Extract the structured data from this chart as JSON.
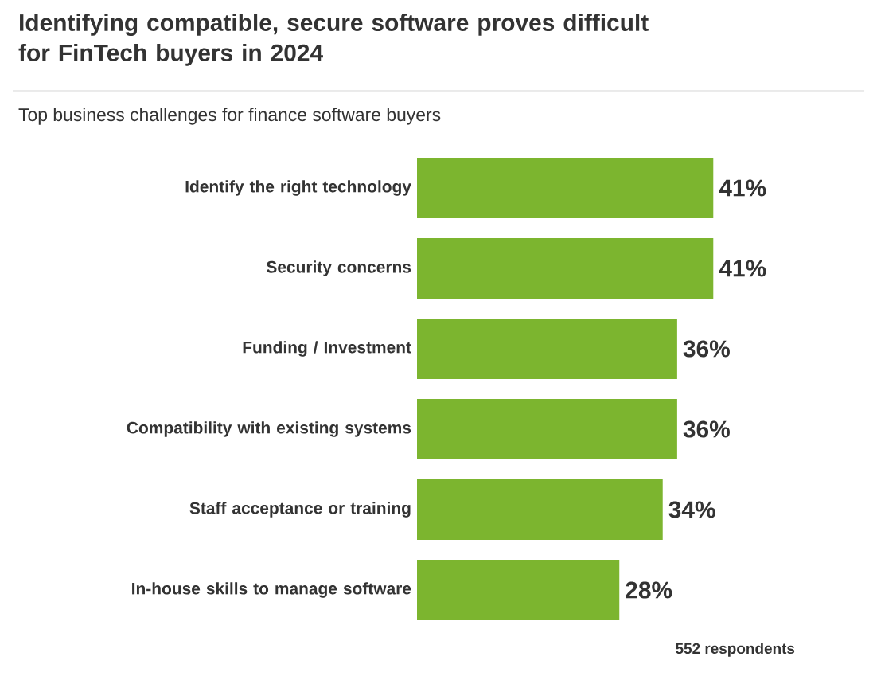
{
  "chart_data": {
    "type": "bar",
    "orientation": "horizontal",
    "title": "Identifying compatible, secure software proves difficult for FinTech buyers in 2024",
    "subtitle": "Top business challenges for finance software buyers",
    "categories": [
      "Identify the right technology",
      "Security concerns",
      "Funding / Investment",
      "Compatibility with existing systems",
      "Staff acceptance or training",
      "In-house skills to manage software"
    ],
    "values": [
      41,
      41,
      36,
      36,
      34,
      28
    ],
    "value_labels": [
      "41%",
      "41%",
      "36%",
      "36%",
      "34%",
      "28%"
    ],
    "color": "#7cb52f",
    "annotations": [
      "552 respondents"
    ]
  }
}
